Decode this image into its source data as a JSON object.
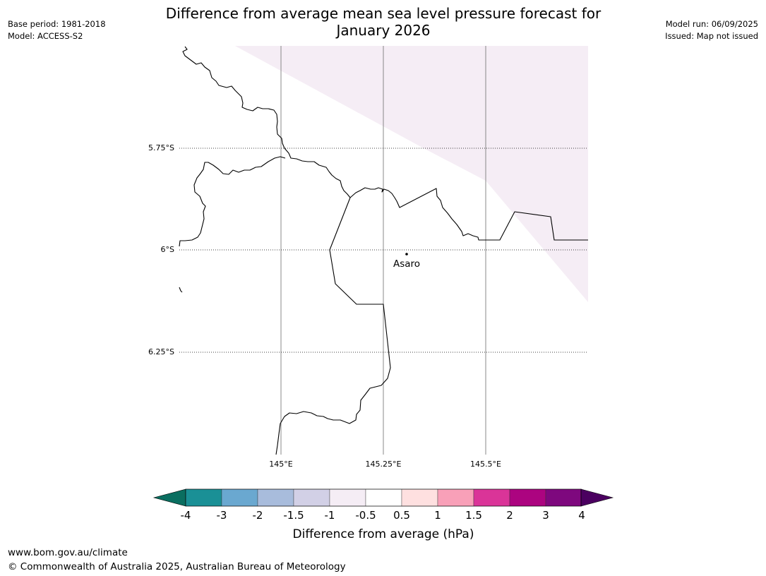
{
  "header": {
    "title_line1": "Difference from average mean sea level pressure forecast for",
    "title_line2": "January 2026",
    "base_period": "Base period: 1981-2018",
    "model": "Model: ACCESS-S2",
    "model_run": "Model run: 06/09/2025",
    "issued": "Issued: Map not issued"
  },
  "map": {
    "latitude_labels": [
      "5.75°S",
      "6°S",
      "6.25°S"
    ],
    "longitude_labels": [
      "145°E",
      "145.25°E",
      "145.5°E"
    ],
    "place": {
      "name": "Asaro"
    },
    "overlay_color": "#f5edf5"
  },
  "colorbar": {
    "title": "Difference from average (hPa)",
    "tick_labels": [
      "-4",
      "-3",
      "-2",
      "-1.5",
      "-1",
      "-0.5",
      "0.5",
      "1",
      "1.5",
      "2",
      "3",
      "4"
    ],
    "under_color": "#0a6e60",
    "over_color": "#4b0060",
    "colors": [
      "#1a9096",
      "#6aa8d0",
      "#a8bcdc",
      "#d2d0e6",
      "#f5edf5",
      "#ffffff",
      "#fee0e0",
      "#f8a0b8",
      "#da3498",
      "#ac0480",
      "#7e087e"
    ]
  },
  "footer": {
    "url": "www.bom.gov.au/climate",
    "copyright": "© Commonwealth of Australia 2025, Australian Bureau of Meteorology"
  }
}
